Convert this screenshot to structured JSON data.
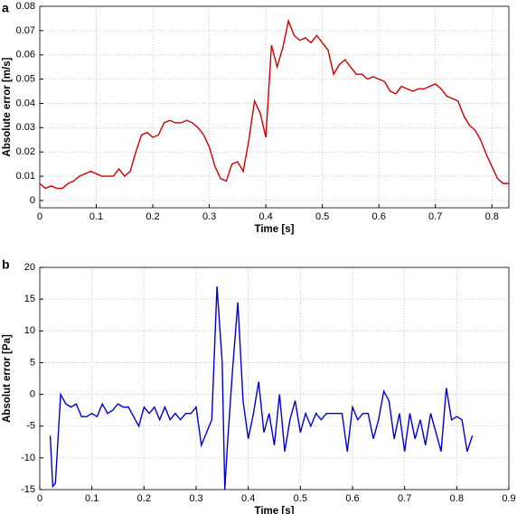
{
  "chart_data": [
    {
      "type": "line",
      "panel_label": "a",
      "xlabel": "Time [s]",
      "ylabel": "Absolute error [m/s]",
      "xlim": [
        0,
        0.83
      ],
      "xticks": [
        0,
        0.1,
        0.2,
        0.3,
        0.4,
        0.5,
        0.6,
        0.7,
        0.8
      ],
      "ylim": [
        -0.003,
        0.08
      ],
      "yticks": [
        0,
        0.01,
        0.02,
        0.03,
        0.04,
        0.05,
        0.06,
        0.07,
        0.08
      ],
      "grid": true,
      "x": [
        0,
        0.01,
        0.02,
        0.03,
        0.04,
        0.05,
        0.06,
        0.07,
        0.08,
        0.09,
        0.1,
        0.11,
        0.12,
        0.13,
        0.14,
        0.15,
        0.16,
        0.17,
        0.18,
        0.19,
        0.2,
        0.21,
        0.22,
        0.23,
        0.24,
        0.25,
        0.26,
        0.27,
        0.28,
        0.29,
        0.3,
        0.31,
        0.32,
        0.33,
        0.34,
        0.35,
        0.36,
        0.37,
        0.38,
        0.39,
        0.4,
        0.41,
        0.42,
        0.43,
        0.44,
        0.45,
        0.46,
        0.47,
        0.48,
        0.49,
        0.5,
        0.51,
        0.52,
        0.53,
        0.54,
        0.55,
        0.56,
        0.57,
        0.58,
        0.59,
        0.6,
        0.61,
        0.62,
        0.63,
        0.64,
        0.65,
        0.66,
        0.67,
        0.68,
        0.69,
        0.7,
        0.71,
        0.72,
        0.73,
        0.74,
        0.75,
        0.76,
        0.77,
        0.78,
        0.79,
        0.8,
        0.81,
        0.82,
        0.83
      ],
      "series": [
        {
          "color": "#cc0000",
          "values": [
            0.007,
            0.005,
            0.006,
            0.005,
            0.005,
            0.007,
            0.008,
            0.01,
            0.011,
            0.012,
            0.011,
            0.01,
            0.01,
            0.01,
            0.013,
            0.01,
            0.012,
            0.02,
            0.027,
            0.028,
            0.026,
            0.027,
            0.032,
            0.033,
            0.032,
            0.032,
            0.033,
            0.032,
            0.03,
            0.027,
            0.022,
            0.014,
            0.009,
            0.008,
            0.015,
            0.016,
            0.012,
            0.025,
            0.041,
            0.036,
            0.026,
            0.064,
            0.055,
            0.063,
            0.074,
            0.068,
            0.066,
            0.067,
            0.065,
            0.068,
            0.065,
            0.062,
            0.052,
            0.056,
            0.058,
            0.055,
            0.052,
            0.052,
            0.05,
            0.051,
            0.05,
            0.049,
            0.045,
            0.044,
            0.047,
            0.046,
            0.045,
            0.046,
            0.046,
            0.047,
            0.048,
            0.046,
            0.043,
            0.042,
            0.041,
            0.035,
            0.031,
            0.029,
            0.025,
            0.019,
            0.014,
            0.009,
            0.007,
            0.007
          ]
        }
      ]
    },
    {
      "type": "line",
      "panel_label": "b",
      "xlabel": "Time [s]",
      "ylabel": "Absolut error [Pa]",
      "xlim": [
        0,
        0.9
      ],
      "xticks": [
        0,
        0.1,
        0.2,
        0.3,
        0.4,
        0.5,
        0.6,
        0.7,
        0.8,
        0.9
      ],
      "ylim": [
        -15,
        20
      ],
      "yticks": [
        -15,
        -10,
        -5,
        0,
        5,
        10,
        15,
        20
      ],
      "grid": true,
      "x": [
        0.02,
        0.025,
        0.03,
        0.04,
        0.05,
        0.06,
        0.07,
        0.08,
        0.09,
        0.1,
        0.11,
        0.12,
        0.13,
        0.14,
        0.15,
        0.16,
        0.17,
        0.18,
        0.19,
        0.2,
        0.21,
        0.22,
        0.23,
        0.24,
        0.25,
        0.26,
        0.27,
        0.28,
        0.29,
        0.3,
        0.31,
        0.32,
        0.33,
        0.34,
        0.35,
        0.355,
        0.36,
        0.37,
        0.38,
        0.39,
        0.4,
        0.41,
        0.42,
        0.43,
        0.44,
        0.45,
        0.46,
        0.47,
        0.48,
        0.49,
        0.5,
        0.51,
        0.52,
        0.53,
        0.54,
        0.55,
        0.56,
        0.57,
        0.58,
        0.59,
        0.6,
        0.61,
        0.62,
        0.63,
        0.64,
        0.65,
        0.66,
        0.67,
        0.68,
        0.69,
        0.7,
        0.71,
        0.72,
        0.73,
        0.74,
        0.75,
        0.76,
        0.77,
        0.78,
        0.79,
        0.8,
        0.81,
        0.82,
        0.83
      ],
      "series": [
        {
          "color": "#0000cc",
          "values": [
            -6.5,
            -14.5,
            -14,
            0,
            -1.5,
            -2,
            -1.5,
            -3.5,
            -3.5,
            -3,
            -3.5,
            -1.5,
            -3,
            -2.5,
            -1.5,
            -2,
            -2,
            -3.5,
            -5,
            -2,
            -3,
            -2,
            -4,
            -2,
            -4,
            -3,
            -4,
            -3,
            -3,
            -2,
            -8,
            -6,
            -4,
            17,
            5,
            -15,
            -8,
            4,
            14.5,
            -1,
            -7,
            -3,
            2,
            -6,
            -3,
            -8,
            0,
            -9,
            -4,
            -1,
            -6,
            -3,
            -5,
            -3,
            -4,
            -3,
            -3,
            -3,
            -3,
            -9,
            -2,
            -4,
            -3,
            -3,
            -7,
            -4,
            0.5,
            -1,
            -7,
            -3,
            -9,
            -3,
            -7,
            -4,
            -8,
            -3,
            -6,
            -9,
            1,
            -4,
            -3.5,
            -4,
            -9,
            -6.5
          ]
        }
      ]
    }
  ]
}
